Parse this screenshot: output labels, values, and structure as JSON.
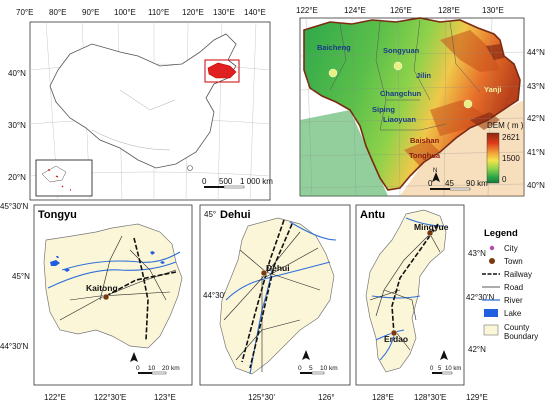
{
  "china_map": {
    "lon_ticks": [
      "70°E",
      "80°E",
      "90°E",
      "100°E",
      "110°E",
      "120°E",
      "130°E",
      "140°E"
    ],
    "lat_ticks": [
      "40°N",
      "30°N",
      "20°N"
    ],
    "scale": {
      "labels": [
        "0",
        "500",
        "1 000 km"
      ]
    }
  },
  "jilin_map": {
    "lon_ticks": [
      "122°E",
      "124°E",
      "126°E",
      "128°E",
      "130°E"
    ],
    "lat_ticks": [
      "44°N",
      "43°N",
      "42°N",
      "41°N",
      "40°N"
    ],
    "cities": [
      "Baicheng",
      "Songyuan",
      "Jilin",
      "Changchun",
      "Siping",
      "Liaoyuan",
      "Yanji",
      "Baishan",
      "Tonghua"
    ],
    "dem": {
      "title": "DEM ( m )",
      "max": "2621",
      "mid": "1500",
      "min": "0",
      "colors": [
        "#8b2a12",
        "#e03a1a",
        "#f2a23a",
        "#f4e44a",
        "#8fd24a",
        "#2aa64a",
        "#1a7a3a"
      ]
    },
    "scale": {
      "labels": [
        "0",
        "45",
        "90 km"
      ]
    }
  },
  "tongyu": {
    "title": "Tongyu",
    "town": "Kaitong",
    "lon_ticks": [
      "122°E",
      "122°30'E",
      "123°E"
    ],
    "lat_ticks": [
      "45°N",
      "44°30'N"
    ],
    "top_left_tick": "45°30'N",
    "scale": {
      "labels": [
        "0",
        "10",
        "20 km"
      ]
    }
  },
  "dehui": {
    "title": "Dehui",
    "town": "Dehui",
    "lat_label_top": "45°",
    "lon_ticks": [
      "125°30'",
      "126°"
    ],
    "lat_ticks": [
      "44°30'"
    ],
    "scale": {
      "labels": [
        "0",
        "5",
        "10 km"
      ]
    }
  },
  "antu": {
    "title": "Antu",
    "towns": [
      "Mingyue",
      "Erdao"
    ],
    "lon_ticks": [
      "128°E",
      "128°30'E",
      "129°E"
    ],
    "lat_ticks": [
      "43°N",
      "42°30'N",
      "42°N"
    ],
    "scale": {
      "labels": [
        "0",
        "5",
        "10 km"
      ]
    }
  },
  "legend": {
    "title": "Legend",
    "items": [
      {
        "label": "City"
      },
      {
        "label": "Town"
      },
      {
        "label": "Railway"
      },
      {
        "label": "Road"
      },
      {
        "label": "River"
      },
      {
        "label": "Lake"
      },
      {
        "label": "County\nBoundary"
      }
    ],
    "colors": {
      "city": "#b04ab0",
      "town": "#7a3a10",
      "river": "#2e6fd8",
      "lake": "#1f5fe0",
      "county_fill": "#fbf6d8"
    }
  }
}
